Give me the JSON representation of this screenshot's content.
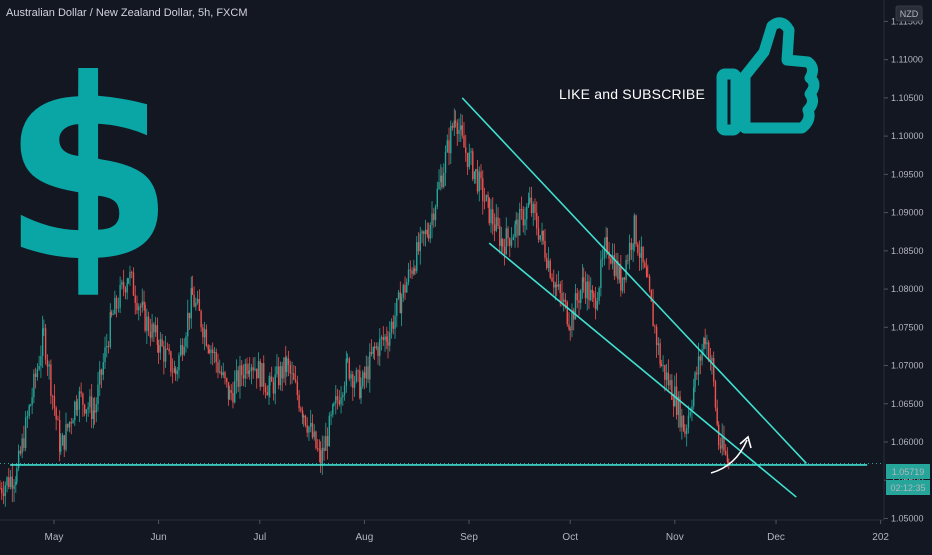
{
  "title": "Australian Dollar / New Zealand Dollar, 5h, FXCM",
  "annotation": "LIKE and SUBSCRIBE",
  "currency_badge": "NZD",
  "dollar_sign": "$",
  "icons": [
    "dollar-sign-icon",
    "thumbs-up-icon",
    "curved-arrow-icon"
  ],
  "colors": {
    "background": "#131722",
    "up_candle": "#26a69a",
    "down_candle": "#ef5350",
    "trendline": "#40e0d0",
    "icon_teal": "#0aa5a5",
    "price_badge": "#26a69a"
  },
  "price_axis": {
    "ticks": [
      "1.11500",
      "1.11000",
      "1.10500",
      "1.10000",
      "1.09500",
      "1.09000",
      "1.08500",
      "1.08000",
      "1.07500",
      "1.07000",
      "1.06500",
      "1.06000",
      "1.05500",
      "1.05000"
    ]
  },
  "time_axis": {
    "ticks": [
      "May",
      "Jun",
      "Jul",
      "Aug",
      "Sep",
      "Oct",
      "Nov",
      "Dec",
      "202"
    ]
  },
  "last_price": "1.05719",
  "countdown": "02:12:35",
  "chart_data": {
    "type": "candlestick",
    "symbol": "AUDNZD",
    "interval": "5h",
    "ylim": [
      1.0498,
      1.1178
    ],
    "xlim": [
      "2023-04-15",
      "2024-01-02"
    ],
    "anchors": [
      [
        "2023-04-15",
        1.054
      ],
      [
        "2023-04-20",
        1.056
      ],
      [
        "2023-04-24",
        1.065
      ],
      [
        "2023-04-28",
        1.074
      ],
      [
        "2023-05-03",
        1.059
      ],
      [
        "2023-05-08",
        1.066
      ],
      [
        "2023-05-13",
        1.064
      ],
      [
        "2023-05-18",
        1.076
      ],
      [
        "2023-05-23",
        1.082
      ],
      [
        "2023-05-28",
        1.076
      ],
      [
        "2023-06-01",
        1.073
      ],
      [
        "2023-06-06",
        1.069
      ],
      [
        "2023-06-11",
        1.079
      ],
      [
        "2023-06-16",
        1.073
      ],
      [
        "2023-06-22",
        1.066
      ],
      [
        "2023-06-28",
        1.071
      ],
      [
        "2023-07-04",
        1.067
      ],
      [
        "2023-07-09",
        1.07
      ],
      [
        "2023-07-14",
        1.064
      ],
      [
        "2023-07-19",
        1.0575
      ],
      [
        "2023-07-23",
        1.064
      ],
      [
        "2023-07-27",
        1.07
      ],
      [
        "2023-07-31",
        1.067
      ],
      [
        "2023-08-04",
        1.072
      ],
      [
        "2023-08-08",
        1.074
      ],
      [
        "2023-08-12",
        1.079
      ],
      [
        "2023-08-16",
        1.084
      ],
      [
        "2023-08-20",
        1.088
      ],
      [
        "2023-08-24",
        1.095
      ],
      [
        "2023-08-28",
        1.103
      ],
      [
        "2023-08-30",
        1.099
      ],
      [
        "2023-09-03",
        1.095
      ],
      [
        "2023-09-07",
        1.09
      ],
      [
        "2023-09-11",
        1.086
      ],
      [
        "2023-09-15",
        1.088
      ],
      [
        "2023-09-19",
        1.091
      ],
      [
        "2023-09-23",
        1.086
      ],
      [
        "2023-09-27",
        1.08
      ],
      [
        "2023-10-01",
        1.076
      ],
      [
        "2023-10-05",
        1.081
      ],
      [
        "2023-10-08",
        1.078
      ],
      [
        "2023-10-12",
        1.086
      ],
      [
        "2023-10-16",
        1.081
      ],
      [
        "2023-10-20",
        1.088
      ],
      [
        "2023-10-24",
        1.08
      ],
      [
        "2023-10-28",
        1.07
      ],
      [
        "2023-11-01",
        1.066
      ],
      [
        "2023-11-04",
        1.0615
      ],
      [
        "2023-11-07",
        1.068
      ],
      [
        "2023-11-10",
        1.074
      ],
      [
        "2023-11-12",
        1.07
      ],
      [
        "2023-11-14",
        1.06
      ],
      [
        "2023-11-17",
        1.0572
      ]
    ],
    "current_price": 1.05719,
    "channel_upper": [
      [
        "2023-08-30",
        1.105
      ],
      [
        "2023-12-10",
        1.0572
      ]
    ],
    "channel_lower": [
      [
        "2023-09-07",
        1.086
      ],
      [
        "2023-12-07",
        1.0528
      ]
    ],
    "support_line": [
      [
        "2023-04-18",
        1.057
      ],
      [
        "2023-12-28",
        1.057
      ]
    ],
    "grid": false
  }
}
